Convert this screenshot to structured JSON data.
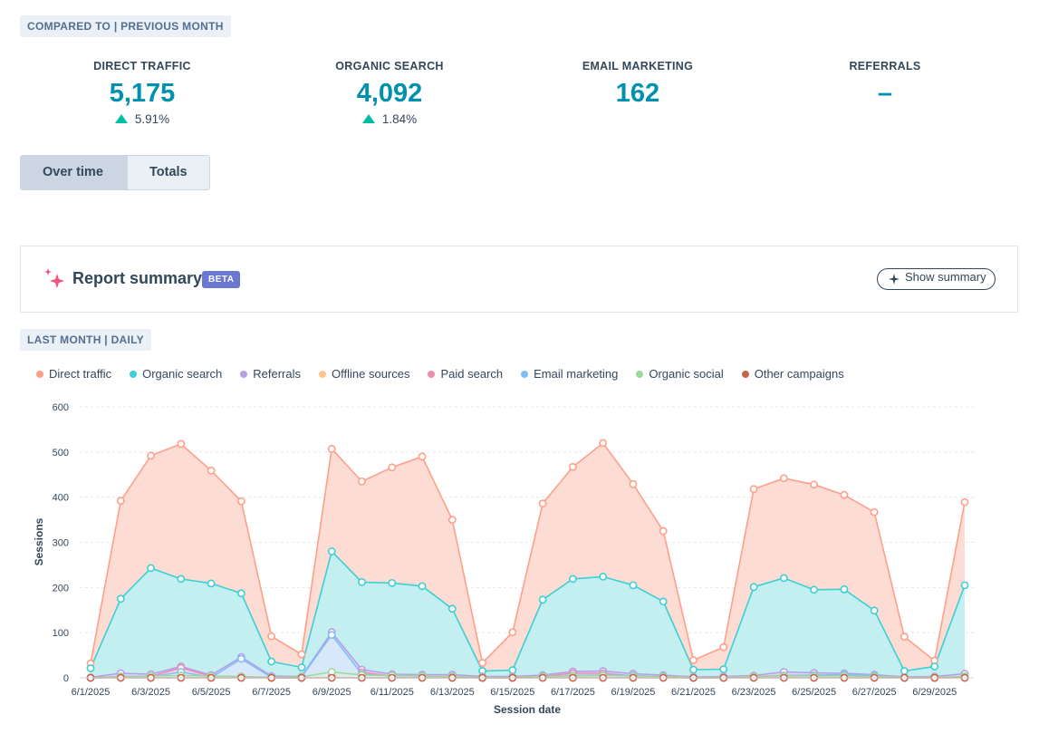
{
  "comparison_badge": "COMPARED TO | PREVIOUS MONTH",
  "kpis": [
    {
      "label": "DIRECT TRAFFIC",
      "value": "5,175",
      "change": "5.91%",
      "trend": "up"
    },
    {
      "label": "ORGANIC SEARCH",
      "value": "4,092",
      "change": "1.84%",
      "trend": "up"
    },
    {
      "label": "EMAIL MARKETING",
      "value": "162",
      "change": "",
      "trend": "none"
    },
    {
      "label": "REFERRALS",
      "value": "–",
      "change": "",
      "trend": "none"
    }
  ],
  "view_toggle": {
    "over_time": "Over time",
    "totals": "Totals",
    "selected": "Over time"
  },
  "summary": {
    "title": "Report summary",
    "beta": "BETA",
    "button": "Show summary"
  },
  "period_badge": "LAST MONTH | DAILY",
  "colors": {
    "accent": "#0091ae",
    "up": "#00bda5",
    "direct": "#ff9f8a",
    "organic": "#3ccfd6",
    "referrals": "#b89ee8",
    "offline": "#ffc48c",
    "paid": "#ea8fb0",
    "email": "#7fbff2",
    "social": "#9ed89c",
    "other": "#c5664a"
  },
  "chart_data": {
    "type": "area",
    "xlabel": "Session date",
    "ylabel": "Sessions",
    "ylim": [
      0,
      600
    ],
    "yticks": [
      0,
      100,
      200,
      300,
      400,
      500,
      600
    ],
    "grid": true,
    "legend_position": "top-left",
    "x": [
      "6/1/2025",
      "6/2/2025",
      "6/3/2025",
      "6/4/2025",
      "6/5/2025",
      "6/6/2025",
      "6/7/2025",
      "6/8/2025",
      "6/9/2025",
      "6/10/2025",
      "6/11/2025",
      "6/12/2025",
      "6/13/2025",
      "6/14/2025",
      "6/15/2025",
      "6/16/2025",
      "6/17/2025",
      "6/18/2025",
      "6/19/2025",
      "6/20/2025",
      "6/21/2025",
      "6/22/2025",
      "6/23/2025",
      "6/24/2025",
      "6/25/2025",
      "6/26/2025",
      "6/27/2025",
      "6/28/2025",
      "6/29/2025",
      "6/30/2025"
    ],
    "tick_labels": [
      "6/1/2025",
      "6/3/2025",
      "6/5/2025",
      "6/7/2025",
      "6/9/2025",
      "6/11/2025",
      "6/13/2025",
      "6/15/2025",
      "6/17/2025",
      "6/19/2025",
      "6/21/2025",
      "6/23/2025",
      "6/25/2025",
      "6/27/2025",
      "6/29/2025"
    ],
    "series": [
      {
        "name": "Direct traffic",
        "values": [
          32,
          392,
          492,
          518,
          459,
          391,
          92,
          52,
          507,
          435,
          466,
          490,
          350,
          33,
          101,
          386,
          467,
          520,
          429,
          325,
          39,
          68,
          418,
          442,
          428,
          405,
          367,
          91,
          38,
          389
        ]
      },
      {
        "name": "Organic search",
        "values": [
          21,
          175,
          243,
          219,
          209,
          187,
          36,
          23,
          280,
          212,
          210,
          203,
          153,
          15,
          17,
          173,
          219,
          224,
          205,
          169,
          18,
          19,
          201,
          221,
          195,
          196,
          149,
          15,
          25,
          205
        ]
      },
      {
        "name": "Referrals",
        "values": [
          1,
          10,
          8,
          25,
          6,
          46,
          4,
          3,
          101,
          18,
          8,
          7,
          7,
          3,
          3,
          6,
          14,
          15,
          9,
          6,
          2,
          3,
          5,
          13,
          11,
          10,
          7,
          2,
          3,
          9
        ]
      },
      {
        "name": "Offline sources",
        "values": [
          0,
          1,
          1,
          2,
          1,
          1,
          0,
          0,
          2,
          1,
          1,
          1,
          1,
          0,
          0,
          1,
          1,
          1,
          1,
          1,
          0,
          0,
          1,
          1,
          1,
          1,
          1,
          0,
          0,
          1
        ]
      },
      {
        "name": "Paid search",
        "values": [
          0,
          3,
          3,
          22,
          3,
          3,
          0,
          0,
          3,
          12,
          4,
          3,
          3,
          0,
          0,
          3,
          10,
          10,
          4,
          3,
          0,
          0,
          3,
          5,
          4,
          6,
          4,
          0,
          0,
          3
        ]
      },
      {
        "name": "Email marketing",
        "values": [
          0,
          1,
          2,
          13,
          1,
          42,
          1,
          2,
          95,
          8,
          3,
          3,
          2,
          0,
          0,
          2,
          5,
          6,
          5,
          3,
          0,
          0,
          2,
          5,
          6,
          7,
          5,
          0,
          0,
          2
        ]
      },
      {
        "name": "Organic social",
        "values": [
          0,
          3,
          4,
          5,
          4,
          3,
          1,
          2,
          13,
          6,
          5,
          4,
          3,
          1,
          1,
          3,
          4,
          5,
          4,
          3,
          1,
          1,
          3,
          4,
          4,
          4,
          3,
          1,
          1,
          3
        ]
      },
      {
        "name": "Other campaigns",
        "values": [
          0,
          0,
          0,
          0,
          0,
          0,
          0,
          0,
          0,
          0,
          0,
          0,
          0,
          0,
          0,
          0,
          0,
          0,
          0,
          0,
          0,
          0,
          0,
          0,
          0,
          0,
          0,
          0,
          0,
          0
        ]
      }
    ]
  }
}
